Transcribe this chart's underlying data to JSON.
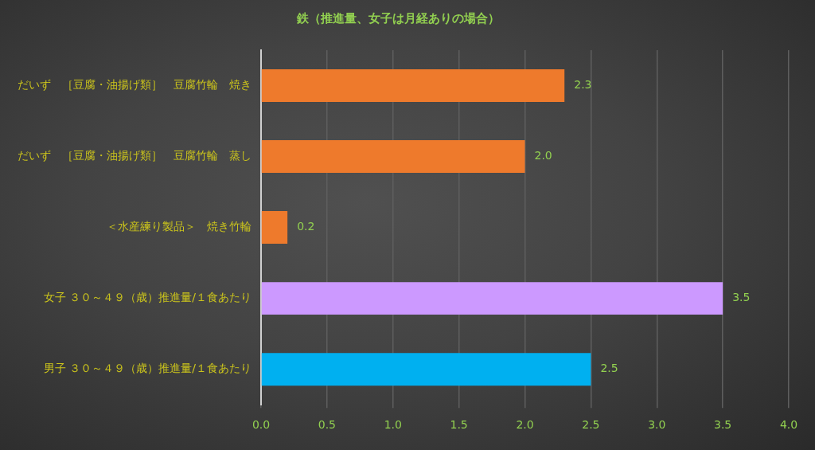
{
  "chart_data": {
    "type": "bar",
    "orientation": "horizontal",
    "title": "鉄（推進量、女子は月経ありの場合）",
    "categories": [
      "だいず　［豆腐・油揚げ類］　豆腐竹輪　焼き",
      "だいず　［豆腐・油揚げ類］　豆腐竹輪　蒸し",
      "＜水産練り製品＞　焼き竹輪",
      "女子 ３０～４９（歳）推進量/１食あたり",
      "男子 ３０～４９（歳）推進量/１食あたり"
    ],
    "values": [
      2.3,
      2.0,
      0.2,
      3.5,
      2.5
    ],
    "colors": [
      "#ee7a2c",
      "#ee7a2c",
      "#ee7a2c",
      "#cc99ff",
      "#00b0f0"
    ],
    "value_labels": [
      "2.3",
      "2.0",
      "0.2",
      "3.5",
      "2.5"
    ],
    "xlim": [
      0,
      4
    ],
    "xticks": [
      {
        "value": 0,
        "label": "0.0"
      },
      {
        "value": 0.5,
        "label": "0.5"
      },
      {
        "value": 1,
        "label": "1.0"
      },
      {
        "value": 1.5,
        "label": "1.5"
      },
      {
        "value": 2,
        "label": "2.0"
      },
      {
        "value": 2.5,
        "label": "2.5"
      },
      {
        "value": 3,
        "label": "3.0"
      },
      {
        "value": 3.5,
        "label": "3.5"
      },
      {
        "value": 4,
        "label": "4.0"
      }
    ],
    "grid": "x"
  }
}
